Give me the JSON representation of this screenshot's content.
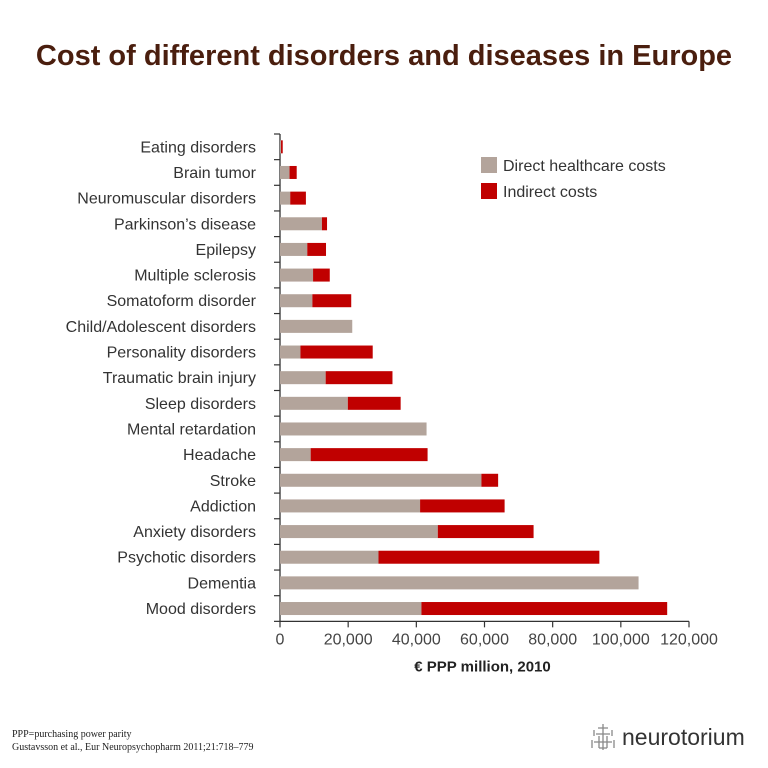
{
  "chart_data": {
    "type": "bar",
    "orientation": "horizontal",
    "stacked": true,
    "title": "Cost of different disorders and diseases in Europe",
    "xlabel": "€ PPP million, 2010",
    "xlim": [
      0,
      120000
    ],
    "xticks": [
      0,
      20000,
      40000,
      60000,
      80000,
      100000,
      120000
    ],
    "xtick_labels": [
      "0",
      "20,000",
      "40,000",
      "60,000",
      "80,000",
      "100,000",
      "120,000"
    ],
    "grid": false,
    "legend": "top-right",
    "categories": [
      "Eating disorders",
      "Brain tumor",
      "Neuromuscular disorders",
      "Parkinson’s disease",
      "Epilepsy",
      "Multiple sclerosis",
      "Somatoform disorder",
      "Child/Adolescent disorders",
      "Personality disorders",
      "Traumatic brain injury",
      "Sleep disorders",
      "Mental retardation",
      "Headache",
      "Stroke",
      "Addiction",
      "Anxiety disorders",
      "Psychotic disorders",
      "Dementia",
      "Mood disorders"
    ],
    "series": [
      {
        "name": "Direct healthcare costs",
        "color": "#b3a49b",
        "values": [
          300,
          2800,
          3000,
          12300,
          8000,
          9700,
          9500,
          21200,
          6000,
          13400,
          19900,
          43000,
          9000,
          59100,
          41100,
          46300,
          28900,
          105200,
          41500
        ]
      },
      {
        "name": "Indirect costs",
        "color": "#c00000",
        "values": [
          500,
          2100,
          4600,
          1500,
          5500,
          4900,
          11400,
          0,
          21200,
          19600,
          15500,
          0,
          34300,
          4900,
          24800,
          28100,
          64800,
          0,
          72100
        ]
      }
    ]
  },
  "footer": {
    "note": "PPP=purchasing power parity",
    "citation": "Gustavsson et al., Eur Neuropsychopharm 2011;21:718–779"
  },
  "logo": {
    "text": "neurotorium",
    "icon": "neuron-glyph-icon"
  }
}
